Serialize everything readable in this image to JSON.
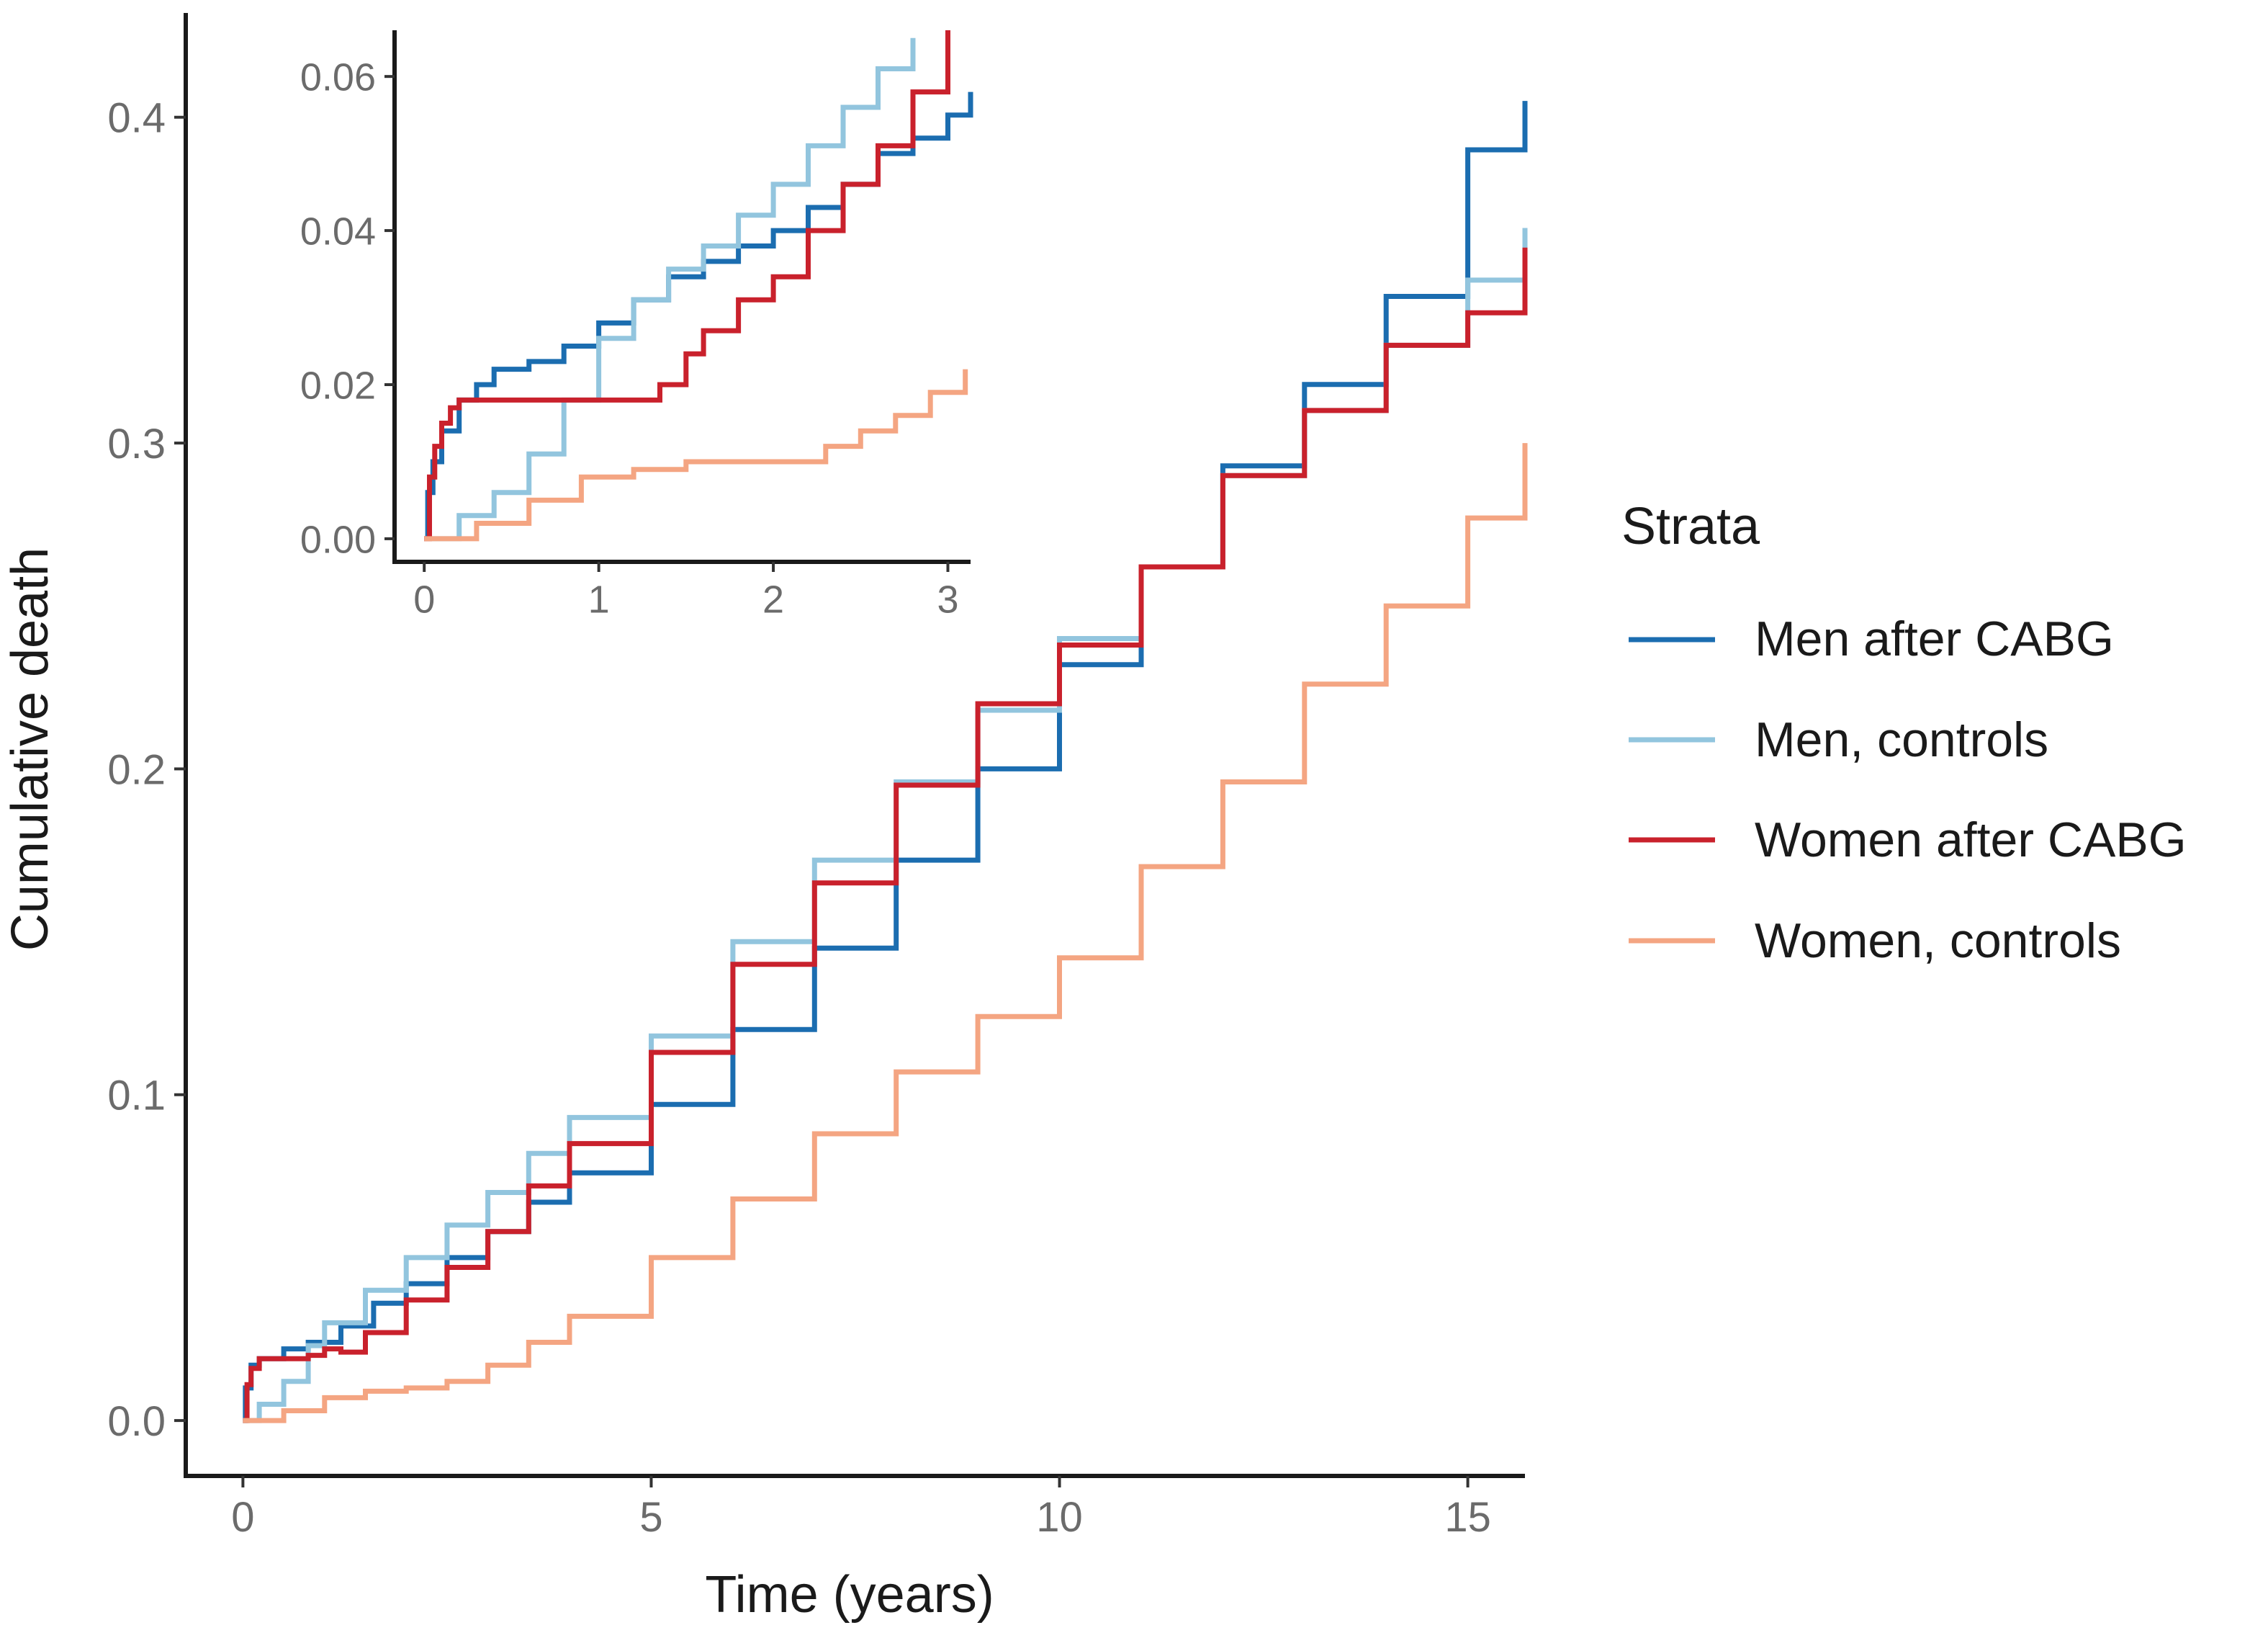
{
  "chart_data": [
    {
      "type": "line",
      "step": true,
      "title": "",
      "xlabel": "Time (years)",
      "ylabel": "Cumulative death",
      "xlim": [
        -0.7,
        15.7
      ],
      "ylim": [
        -0.017,
        0.432
      ],
      "xticks": [
        0,
        5,
        10,
        15
      ],
      "yticks": [
        0.0,
        0.1,
        0.2,
        0.3,
        0.4
      ],
      "xtick_labels": [
        "0",
        "5",
        "10",
        "15"
      ],
      "ytick_labels": [
        "0.0",
        "0.1",
        "0.2",
        "0.3",
        "0.4"
      ],
      "series": [
        {
          "name": "Men after CABG",
          "color": "#1b6db0",
          "x": [
            0,
            0.03,
            0.1,
            0.2,
            0.5,
            0.8,
            1.2,
            1.6,
            2.0,
            2.5,
            3.0,
            3.5,
            4.0,
            5.0,
            6.0,
            7.0,
            8.0,
            9.0,
            10.0,
            11.0,
            12.0,
            13.0,
            14.0,
            15.0,
            15.7
          ],
          "y": [
            0,
            0.01,
            0.017,
            0.019,
            0.022,
            0.024,
            0.029,
            0.036,
            0.042,
            0.05,
            0.058,
            0.067,
            0.076,
            0.097,
            0.12,
            0.145,
            0.172,
            0.2,
            0.232,
            0.262,
            0.293,
            0.318,
            0.345,
            0.39,
            0.405
          ]
        },
        {
          "name": "Men, controls",
          "color": "#92c5de",
          "x": [
            0,
            0.2,
            0.5,
            0.8,
            1.0,
            1.5,
            2.0,
            2.5,
            3.0,
            3.5,
            4.0,
            5.0,
            6.0,
            7.0,
            8.0,
            9.0,
            10.0,
            11.0,
            12.0,
            13.0,
            14.0,
            15.0,
            15.7
          ],
          "y": [
            0,
            0.005,
            0.012,
            0.023,
            0.03,
            0.04,
            0.05,
            0.06,
            0.07,
            0.082,
            0.093,
            0.118,
            0.147,
            0.172,
            0.196,
            0.218,
            0.24,
            0.262,
            0.29,
            0.31,
            0.33,
            0.35,
            0.366
          ]
        },
        {
          "name": "Women after CABG",
          "color": "#c9212c",
          "x": [
            0,
            0.05,
            0.1,
            0.2,
            0.4,
            0.8,
            1.0,
            1.2,
            1.5,
            2.0,
            2.5,
            3.0,
            3.5,
            4.0,
            5.0,
            6.0,
            7.0,
            8.0,
            9.0,
            10.0,
            11.0,
            12.0,
            13.0,
            14.0,
            15.0,
            15.7
          ],
          "y": [
            0,
            0.011,
            0.016,
            0.019,
            0.019,
            0.02,
            0.022,
            0.021,
            0.027,
            0.037,
            0.047,
            0.058,
            0.072,
            0.085,
            0.113,
            0.14,
            0.165,
            0.195,
            0.22,
            0.238,
            0.262,
            0.29,
            0.31,
            0.33,
            0.34,
            0.36
          ]
        },
        {
          "name": "Women, controls",
          "color": "#f4a582",
          "x": [
            0,
            0.5,
            1.0,
            1.5,
            2.0,
            2.5,
            3.0,
            3.5,
            4.0,
            5.0,
            6.0,
            7.0,
            8.0,
            9.0,
            10.0,
            11.0,
            12.0,
            13.0,
            14.0,
            15.0,
            15.7
          ],
          "y": [
            0,
            0.003,
            0.007,
            0.009,
            0.01,
            0.012,
            0.017,
            0.024,
            0.032,
            0.05,
            0.068,
            0.088,
            0.107,
            0.124,
            0.142,
            0.17,
            0.196,
            0.226,
            0.25,
            0.277,
            0.3
          ]
        }
      ]
    },
    {
      "type": "line",
      "step": true,
      "title": "",
      "xlabel": "",
      "ylabel": "",
      "xlim": [
        -0.17,
        3.13
      ],
      "ylim": [
        -0.003,
        0.066
      ],
      "xticks": [
        0,
        1,
        2,
        3
      ],
      "yticks": [
        0.0,
        0.02,
        0.04,
        0.06
      ],
      "xtick_labels": [
        "0",
        "1",
        "2",
        "3"
      ],
      "ytick_labels": [
        "0.00",
        "0.02",
        "0.04",
        "0.06"
      ],
      "series": [
        {
          "name": "Men after CABG",
          "color": "#1b6db0",
          "x": [
            0,
            0.02,
            0.05,
            0.1,
            0.2,
            0.3,
            0.4,
            0.6,
            0.8,
            1.0,
            1.2,
            1.4,
            1.6,
            1.8,
            2.0,
            2.2,
            2.4,
            2.6,
            2.8,
            3.0,
            3.13
          ],
          "y": [
            0,
            0.006,
            0.01,
            0.014,
            0.018,
            0.02,
            0.022,
            0.023,
            0.025,
            0.028,
            0.031,
            0.034,
            0.036,
            0.038,
            0.04,
            0.043,
            0.046,
            0.05,
            0.052,
            0.055,
            0.058
          ]
        },
        {
          "name": "Men, controls",
          "color": "#92c5de",
          "x": [
            0,
            0.2,
            0.4,
            0.6,
            0.8,
            1.0,
            1.2,
            1.4,
            1.6,
            1.8,
            2.0,
            2.2,
            2.4,
            2.6,
            2.8
          ],
          "y": [
            0,
            0.003,
            0.006,
            0.011,
            0.018,
            0.026,
            0.031,
            0.035,
            0.038,
            0.042,
            0.046,
            0.051,
            0.056,
            0.061,
            0.065
          ]
        },
        {
          "name": "Women after CABG",
          "color": "#c9212c",
          "x": [
            0,
            0.03,
            0.06,
            0.1,
            0.15,
            0.2,
            0.5,
            1.0,
            1.35,
            1.5,
            1.6,
            1.8,
            2.0,
            2.2,
            2.4,
            2.6,
            2.8,
            3.0
          ],
          "y": [
            0,
            0.008,
            0.012,
            0.015,
            0.017,
            0.018,
            0.018,
            0.018,
            0.02,
            0.024,
            0.027,
            0.031,
            0.034,
            0.04,
            0.046,
            0.051,
            0.058,
            0.066
          ]
        },
        {
          "name": "Women, controls",
          "color": "#f4a582",
          "x": [
            0,
            0.3,
            0.6,
            0.9,
            1.2,
            1.5,
            1.8,
            2.1,
            2.3,
            2.5,
            2.7,
            2.9,
            3.1
          ],
          "y": [
            0,
            0.002,
            0.005,
            0.008,
            0.009,
            0.01,
            0.01,
            0.01,
            0.012,
            0.014,
            0.016,
            0.019,
            0.022
          ]
        }
      ]
    }
  ],
  "legend": {
    "title": "Strata",
    "items": [
      {
        "label": "Men after CABG",
        "color": "#1b6db0"
      },
      {
        "label": "Men, controls",
        "color": "#92c5de"
      },
      {
        "label": "Women after CABG",
        "color": "#c9212c"
      },
      {
        "label": "Women, controls",
        "color": "#f4a582"
      }
    ]
  }
}
